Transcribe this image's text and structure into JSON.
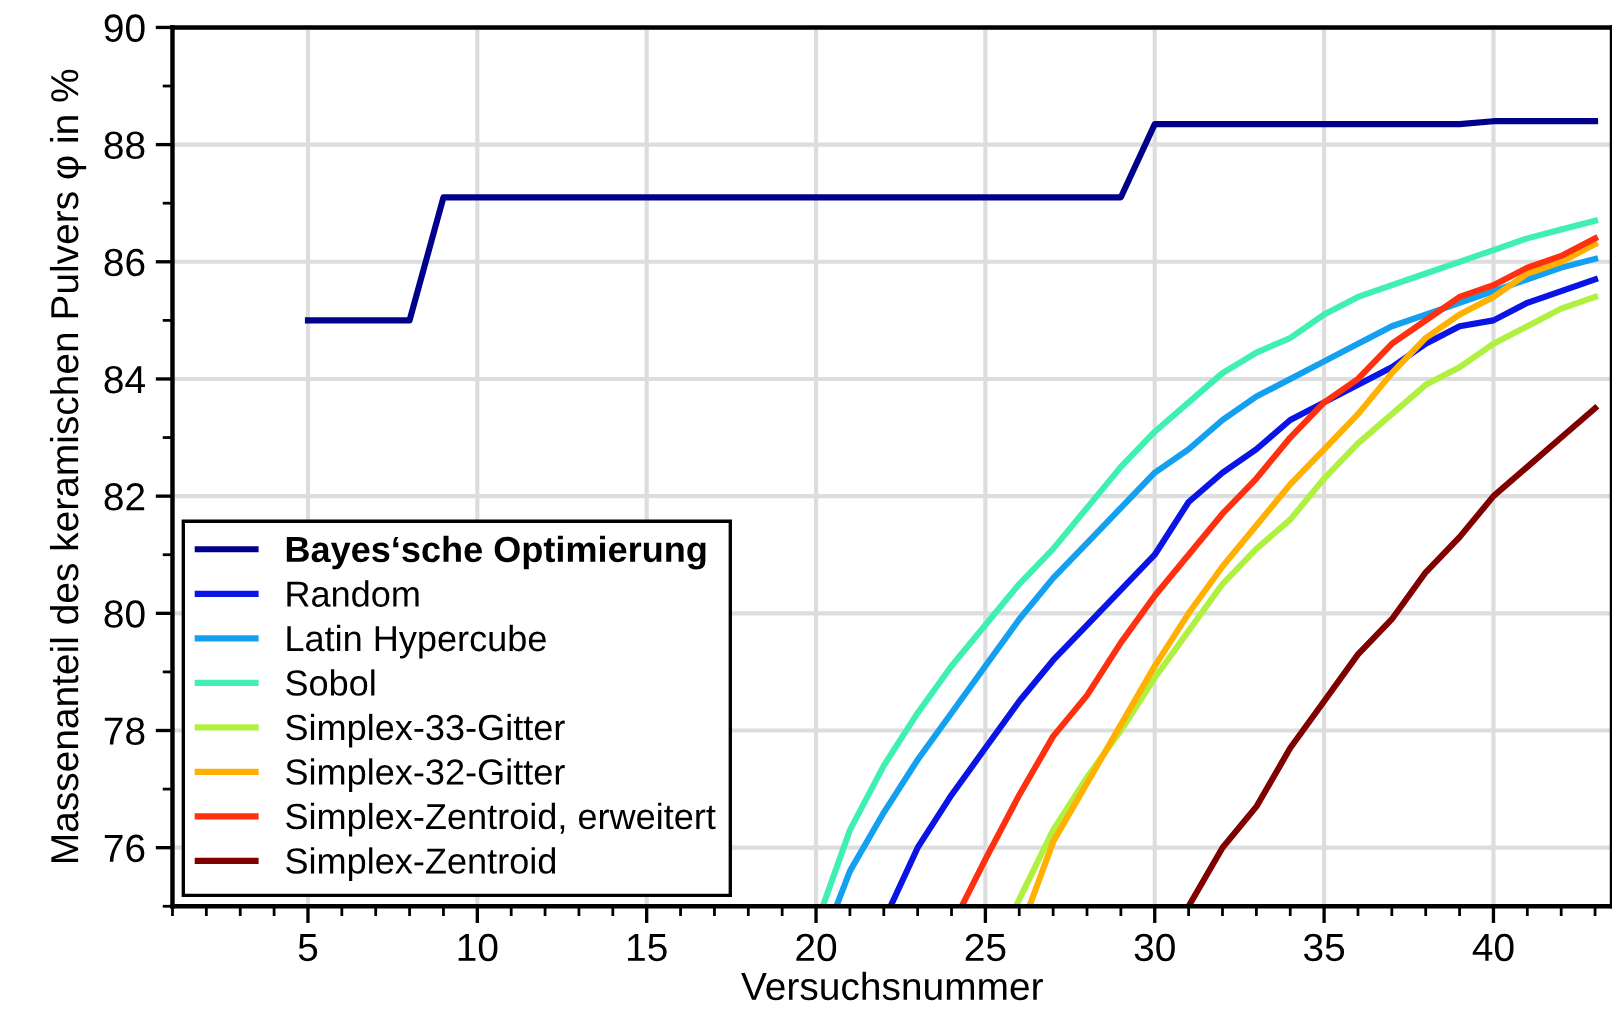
{
  "chart_data": {
    "type": "line",
    "xlabel": "Versuchsnummer",
    "ylabel": "Massenanteil des keramischen Pulvers φ in %",
    "xlim": [
      1,
      43.5
    ],
    "xticks": [
      5,
      10,
      15,
      20,
      25,
      30,
      35,
      40
    ],
    "ylim": [
      75,
      90
    ],
    "yticks": [
      76,
      78,
      80,
      82,
      84,
      86,
      88,
      90
    ],
    "grid": true,
    "legend": "bottom left",
    "marker": "none",
    "line_style": "solid",
    "series": [
      {
        "name": "Bayes‘sche Optimierung",
        "color": "#00008b",
        "x": [
          5,
          6,
          7,
          8,
          9,
          10,
          15,
          20,
          25,
          29,
          30,
          35,
          39,
          40,
          41,
          42,
          43
        ],
        "values": [
          85.0,
          85.0,
          85.0,
          85.0,
          87.1,
          87.1,
          87.1,
          87.1,
          87.1,
          87.1,
          88.35,
          88.35,
          88.35,
          88.4,
          88.4,
          88.4,
          88.4
        ]
      },
      {
        "name": "Random",
        "color": "#0a14e6",
        "x": [
          22.2,
          23,
          24,
          25,
          26,
          27,
          28,
          29,
          30,
          31,
          32,
          33,
          34,
          35,
          36,
          37,
          38,
          39,
          40,
          41,
          42,
          43
        ],
        "values": [
          75,
          76.0,
          76.9,
          77.7,
          78.5,
          79.2,
          79.8,
          80.4,
          81.0,
          81.9,
          82.4,
          82.8,
          83.3,
          83.6,
          83.9,
          84.2,
          84.6,
          84.9,
          85.0,
          85.3,
          85.5,
          85.7
        ]
      },
      {
        "name": "Latin Hypercube",
        "color": "#14a0f0",
        "x": [
          20.6,
          21,
          22,
          23,
          24,
          25,
          26,
          27,
          28,
          29,
          30,
          31,
          32,
          33,
          34,
          35,
          36,
          37,
          38,
          39,
          40,
          41,
          42,
          43
        ],
        "values": [
          75,
          75.6,
          76.6,
          77.5,
          78.3,
          79.1,
          79.9,
          80.6,
          81.2,
          81.8,
          82.4,
          82.8,
          83.3,
          83.7,
          84.0,
          84.3,
          84.6,
          84.9,
          85.1,
          85.3,
          85.5,
          85.7,
          85.9,
          86.05
        ]
      },
      {
        "name": "Sobol",
        "color": "#40f0b0",
        "x": [
          20.2,
          21,
          22,
          23,
          24,
          25,
          26,
          27,
          28,
          29,
          30,
          31,
          32,
          33,
          34,
          35,
          36,
          37,
          38,
          39,
          40,
          41,
          42,
          43
        ],
        "values": [
          75,
          76.3,
          77.4,
          78.3,
          79.1,
          79.8,
          80.5,
          81.1,
          81.8,
          82.5,
          83.1,
          83.6,
          84.1,
          84.45,
          84.7,
          85.1,
          85.4,
          85.6,
          85.8,
          86.0,
          86.2,
          86.4,
          86.55,
          86.7
        ]
      },
      {
        "name": "Simplex-33-Gitter",
        "color": "#b0f040",
        "x": [
          25.9,
          27,
          28,
          29,
          30,
          31,
          32,
          33,
          34,
          35,
          36,
          37,
          38,
          39,
          40,
          41,
          42,
          43
        ],
        "values": [
          75,
          76.3,
          77.2,
          78.0,
          78.9,
          79.7,
          80.5,
          81.1,
          81.6,
          82.3,
          82.9,
          83.4,
          83.9,
          84.2,
          84.6,
          84.9,
          85.2,
          85.4
        ]
      },
      {
        "name": "Simplex-32-Gitter",
        "color": "#ffb000",
        "x": [
          26.3,
          27,
          28,
          29,
          30,
          31,
          32,
          33,
          34,
          35,
          36,
          37,
          38,
          39,
          40,
          41,
          42,
          43
        ],
        "values": [
          75,
          76.1,
          77.1,
          78.1,
          79.1,
          80.0,
          80.8,
          81.5,
          82.2,
          82.8,
          83.4,
          84.1,
          84.7,
          85.1,
          85.4,
          85.8,
          86.0,
          86.3
        ]
      },
      {
        "name": "Simplex-Zentroid, erweitert",
        "color": "#ff3010",
        "x": [
          24.3,
          25,
          26,
          27,
          28,
          29,
          30,
          31,
          32,
          33,
          34,
          35,
          36,
          37,
          38,
          39,
          40,
          41,
          42,
          43
        ],
        "values": [
          75,
          75.8,
          76.9,
          77.9,
          78.6,
          79.5,
          80.3,
          81.0,
          81.7,
          82.3,
          83.0,
          83.6,
          84.0,
          84.6,
          85.0,
          85.4,
          85.6,
          85.9,
          86.1,
          86.4
        ]
      },
      {
        "name": "Simplex-Zentroid",
        "color": "#800000",
        "x": [
          31,
          32,
          33,
          34,
          35,
          36,
          37,
          38,
          39,
          40,
          41,
          42,
          43
        ],
        "values": [
          75,
          76.0,
          76.7,
          77.7,
          78.5,
          79.3,
          79.9,
          80.7,
          81.3,
          82.0,
          82.5,
          83.0,
          83.5
        ]
      }
    ]
  }
}
